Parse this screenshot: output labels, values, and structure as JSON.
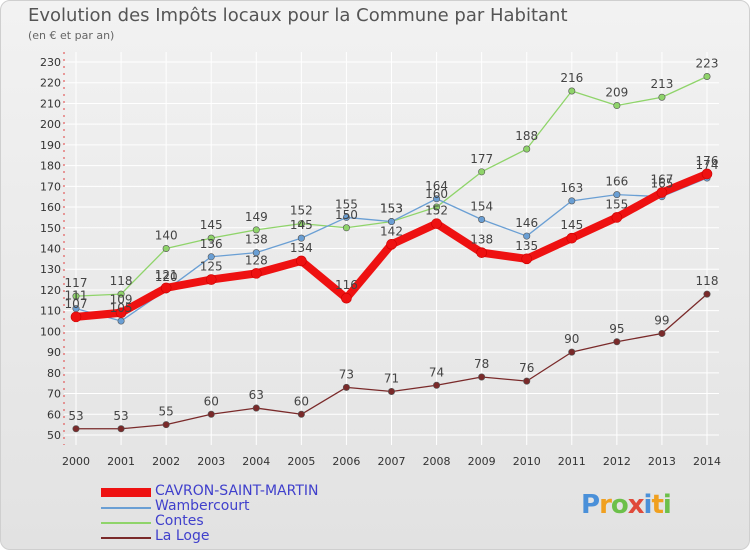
{
  "header": {
    "title": "Evolution des Impôts locaux pour la Commune par Habitant",
    "subtitle": "(en € et par an)"
  },
  "logo": {
    "text": "Proxiti",
    "letters": [
      "P",
      "r",
      "o",
      "x",
      "i",
      "t",
      "i"
    ],
    "colors": [
      "#4a90d9",
      "#f0a020",
      "#6cc04a",
      "#e04a3a",
      "#4a90d9",
      "#f0a020",
      "#6cc04a"
    ]
  },
  "chart_data": {
    "type": "line",
    "title": "Evolution des Impôts locaux pour la Commune par Habitant",
    "subtitle": "(en € et par an)",
    "x": [
      "2000",
      "2001",
      "2002",
      "2003",
      "2004",
      "2005",
      "2006",
      "2007",
      "2008",
      "2009",
      "2010",
      "2011",
      "2012",
      "2013",
      "2014"
    ],
    "ylim": [
      50,
      230
    ],
    "yticks": [
      50,
      60,
      70,
      80,
      90,
      100,
      110,
      120,
      130,
      140,
      150,
      160,
      170,
      180,
      190,
      200,
      210,
      220,
      230
    ],
    "grid": true,
    "legend_position": "bottom-left",
    "series": [
      {
        "name": "CAVRON-SAINT-MARTIN",
        "color": "#ee1111",
        "values": [
          107,
          109,
          121,
          125,
          128,
          134,
          116,
          142,
          152,
          138,
          135,
          145,
          155,
          167,
          176
        ]
      },
      {
        "name": "Wambercourt",
        "color": "#6a9fd4",
        "values": [
          111,
          105,
          120,
          136,
          138,
          145,
          155,
          153,
          164,
          154,
          146,
          163,
          166,
          165,
          174
        ]
      },
      {
        "name": "Contes",
        "color": "#8fd46a",
        "values": [
          117,
          118,
          140,
          145,
          149,
          152,
          150,
          153,
          160,
          177,
          188,
          216,
          209,
          213,
          223
        ]
      },
      {
        "name": "La Loge",
        "color": "#7a2a2a",
        "values": [
          53,
          53,
          55,
          60,
          63,
          60,
          73,
          71,
          74,
          78,
          76,
          90,
          95,
          99,
          118
        ]
      }
    ]
  }
}
